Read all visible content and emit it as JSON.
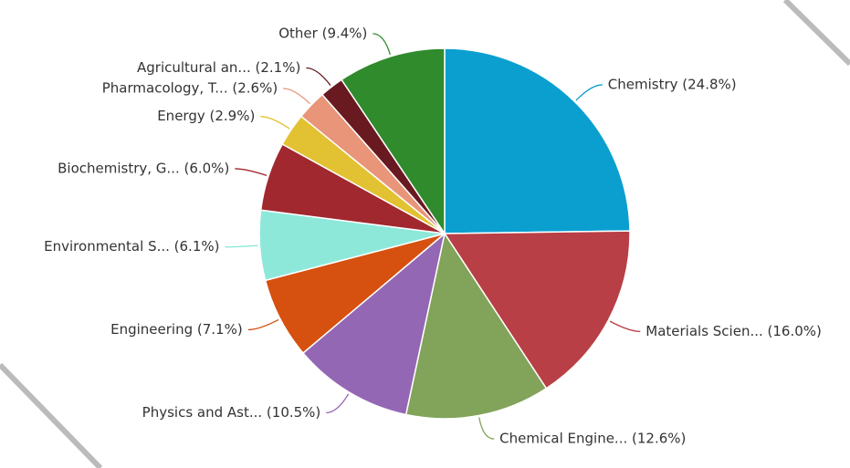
{
  "chart_data": {
    "type": "pie",
    "categories": [
      "Chemistry (24.8%)",
      "Materials Scien... (16.0%)",
      "Chemical Engine... (12.6%)",
      "Physics and Ast... (10.5%)",
      "Engineering (7.1%)",
      "Environmental S... (6.1%)",
      "Biochemistry, G... (6.0%)",
      "Energy (2.9%)",
      "Pharmacology, T... (2.6%)",
      "Agricultural an... (2.1%)",
      "Other (9.4%)"
    ],
    "values": [
      24.8,
      16.0,
      12.6,
      10.5,
      7.1,
      6.1,
      6.0,
      2.9,
      2.6,
      2.1,
      9.4
    ],
    "colors": [
      "#0b9fd0",
      "#b83f45",
      "#82a35a",
      "#9467b4",
      "#d6500f",
      "#8ee8d9",
      "#a0282e",
      "#e2c232",
      "#e8957a",
      "#681a20",
      "#2f8b2c"
    ]
  }
}
